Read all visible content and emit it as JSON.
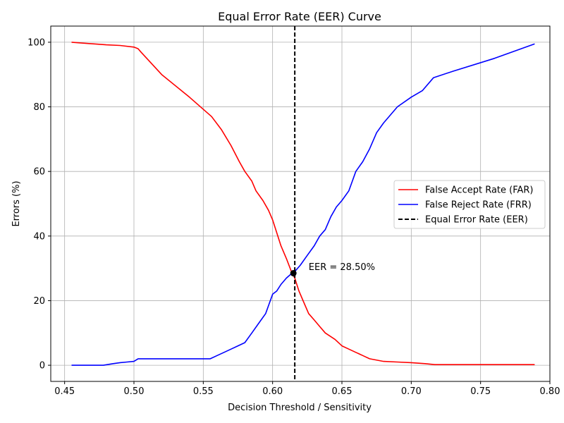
{
  "chart_data": {
    "type": "line",
    "title": "Equal Error Rate (EER) Curve",
    "xlabel": "Decision Threshold / Sensitivity",
    "ylabel": "Errors (%)",
    "xlim": [
      0.44,
      0.8
    ],
    "ylim": [
      -5,
      105
    ],
    "xticks": [
      0.45,
      0.5,
      0.55,
      0.6,
      0.65,
      0.7,
      0.75,
      0.8
    ],
    "xtick_labels": [
      "0.45",
      "0.50",
      "0.55",
      "0.60",
      "0.65",
      "0.70",
      "0.75",
      "0.80"
    ],
    "yticks": [
      0,
      20,
      40,
      60,
      80,
      100
    ],
    "ytick_labels": [
      "0",
      "20",
      "40",
      "60",
      "80",
      "100"
    ],
    "grid": true,
    "legend_position": "center-right",
    "series": [
      {
        "name": "False Accept Rate (FAR)",
        "color": "#ff0000",
        "style": "solid",
        "x": [
          0.455,
          0.48,
          0.49,
          0.5,
          0.503,
          0.505,
          0.52,
          0.54,
          0.556,
          0.563,
          0.57,
          0.576,
          0.58,
          0.585,
          0.588,
          0.593,
          0.597,
          0.6,
          0.603,
          0.606,
          0.61,
          0.614,
          0.616,
          0.619,
          0.622,
          0.626,
          0.63,
          0.634,
          0.638,
          0.645,
          0.65,
          0.655,
          0.66,
          0.665,
          0.67,
          0.68,
          0.69,
          0.7,
          0.71,
          0.717,
          0.73,
          0.76,
          0.789
        ],
        "y": [
          100,
          99.2,
          99,
          98.5,
          98,
          97,
          90,
          83,
          77,
          73,
          68,
          63,
          60,
          57,
          54,
          51,
          48,
          45,
          41,
          37,
          33,
          28.5,
          27,
          23,
          20,
          16,
          14,
          12,
          10,
          8,
          6,
          5,
          4,
          3,
          2,
          1.2,
          1,
          0.8,
          0.5,
          0.2,
          0.2,
          0.2,
          0.2
        ]
      },
      {
        "name": "False Reject Rate (FRR)",
        "color": "#0000ff",
        "style": "solid",
        "x": [
          0.455,
          0.47,
          0.478,
          0.485,
          0.49,
          0.495,
          0.5,
          0.503,
          0.51,
          0.53,
          0.555,
          0.56,
          0.565,
          0.57,
          0.575,
          0.58,
          0.585,
          0.59,
          0.595,
          0.6,
          0.603,
          0.606,
          0.61,
          0.614,
          0.616,
          0.62,
          0.625,
          0.63,
          0.634,
          0.638,
          0.642,
          0.646,
          0.65,
          0.655,
          0.66,
          0.665,
          0.67,
          0.675,
          0.68,
          0.69,
          0.7,
          0.708,
          0.716,
          0.73,
          0.76,
          0.789
        ],
        "y": [
          0,
          0,
          0,
          0.5,
          0.8,
          1,
          1.2,
          2,
          2,
          2,
          2,
          3,
          4,
          5,
          6,
          7,
          10,
          13,
          16,
          22,
          23,
          25,
          27,
          28.5,
          29,
          31,
          34,
          37,
          40,
          42,
          46,
          49,
          51,
          54,
          60,
          63,
          67,
          72,
          75,
          80,
          83,
          85,
          89,
          91,
          95,
          99.5
        ]
      },
      {
        "name": "Equal Error Rate (EER)",
        "color": "#000000",
        "style": "dashed",
        "vline_x": 0.616
      }
    ],
    "eer_point": {
      "x": 0.615,
      "y": 28.5
    },
    "annotation": {
      "text": "EER = 28.50%",
      "x": 0.626,
      "y": 30.5
    }
  }
}
